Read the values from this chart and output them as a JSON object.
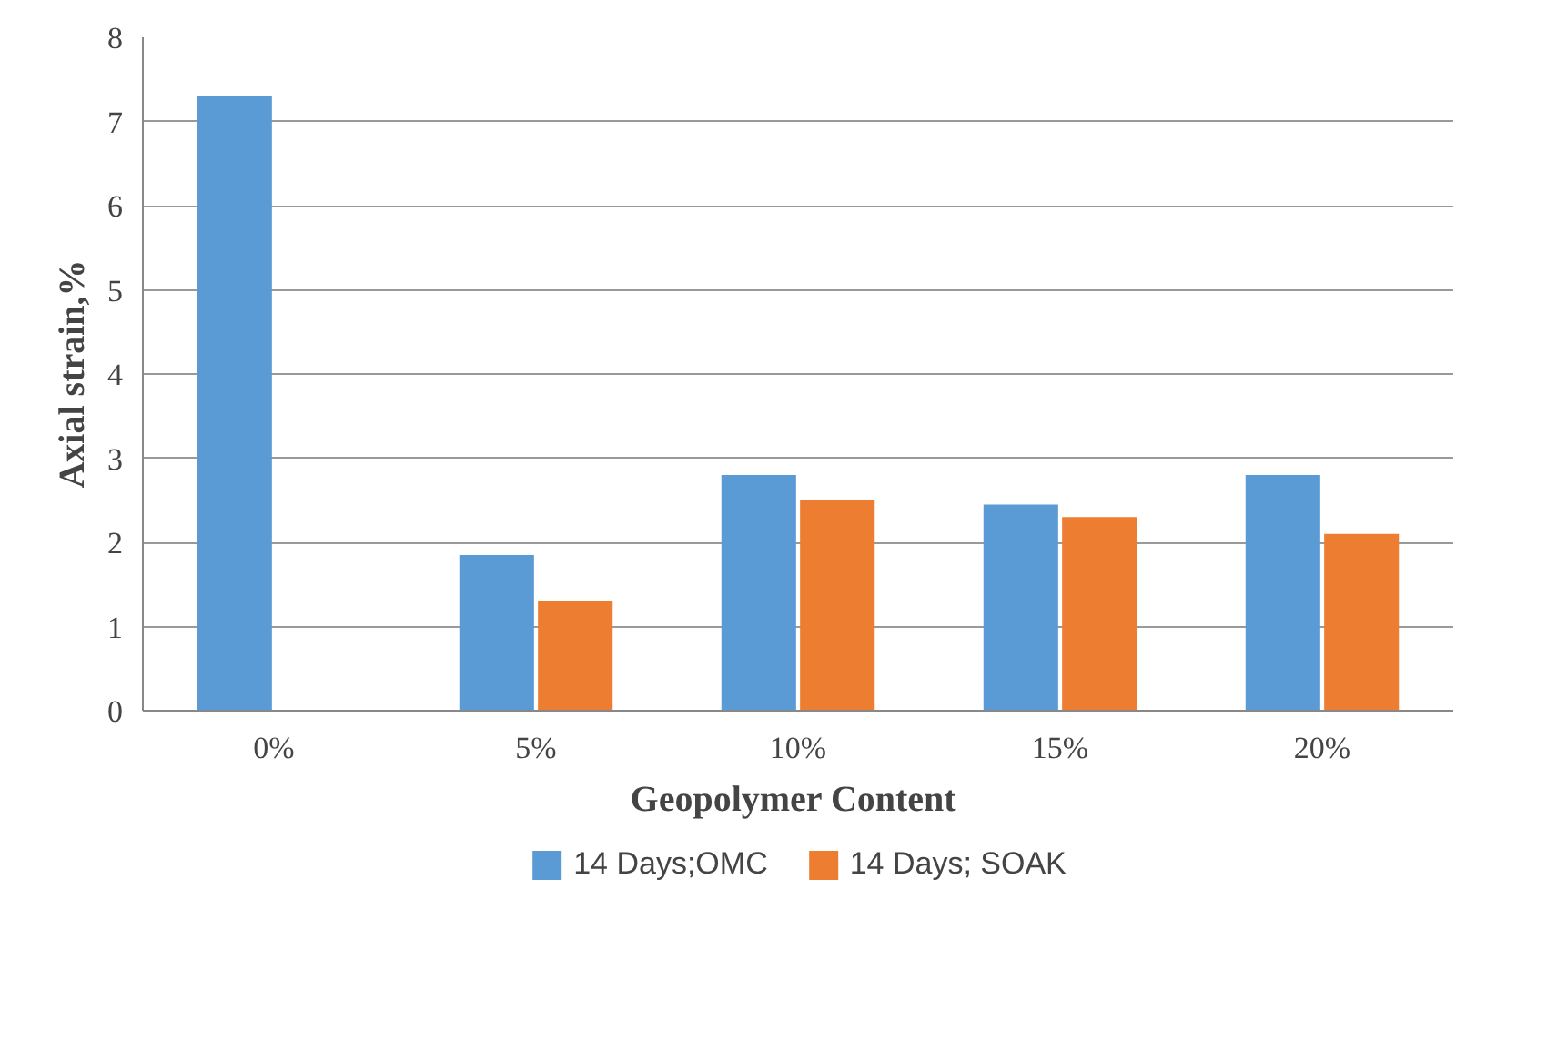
{
  "chart_data": {
    "type": "bar",
    "xlabel": "Geopolymer  Content",
    "ylabel": "Axial strain,%",
    "categories": [
      "0%",
      "5%",
      "10%",
      "15%",
      "20%"
    ],
    "series": [
      {
        "name": "14 Days;OMC",
        "color": "#5b9bd5",
        "values": [
          7.3,
          1.85,
          2.8,
          2.45,
          2.8
        ]
      },
      {
        "name": "14 Days; SOAK",
        "color": "#ed7d31",
        "values": [
          null,
          1.3,
          2.5,
          2.3,
          2.1
        ]
      }
    ],
    "ylim": [
      0,
      8
    ],
    "yticks": [
      0,
      1,
      2,
      3,
      4,
      5,
      6,
      7,
      8
    ],
    "grid": "y",
    "legend": "bottom"
  }
}
